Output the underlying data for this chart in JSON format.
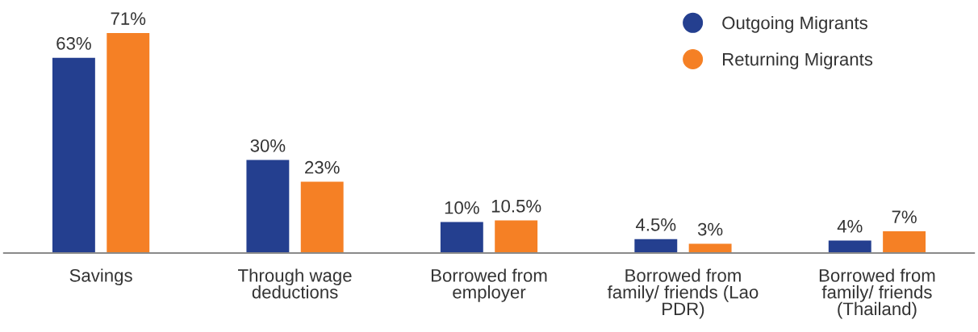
{
  "chart_data": {
    "type": "bar",
    "categories": [
      "Savings",
      "Through wage\ndeductions",
      "Borrowed from\nemployer",
      "Borrowed from\nfamily/ friends (Lao\nPDR)",
      "Borrowed from\nfamily/ friends\n(Thailand)"
    ],
    "series": [
      {
        "name": "Outgoing Migrants",
        "color": "#243f8f",
        "values": [
          63,
          30,
          10,
          4.5,
          4
        ],
        "value_labels": [
          "63%",
          "30%",
          "10%",
          "4.5%",
          "4%"
        ]
      },
      {
        "name": "Returning Migrants",
        "color": "#f58025",
        "values": [
          71,
          23,
          10.5,
          3,
          7
        ],
        "value_labels": [
          "71%",
          "23%",
          "10.5%",
          "3%",
          "7%"
        ]
      }
    ],
    "legend": "top right",
    "marker": "circle",
    "grid": false,
    "tick_labels": "x"
  }
}
